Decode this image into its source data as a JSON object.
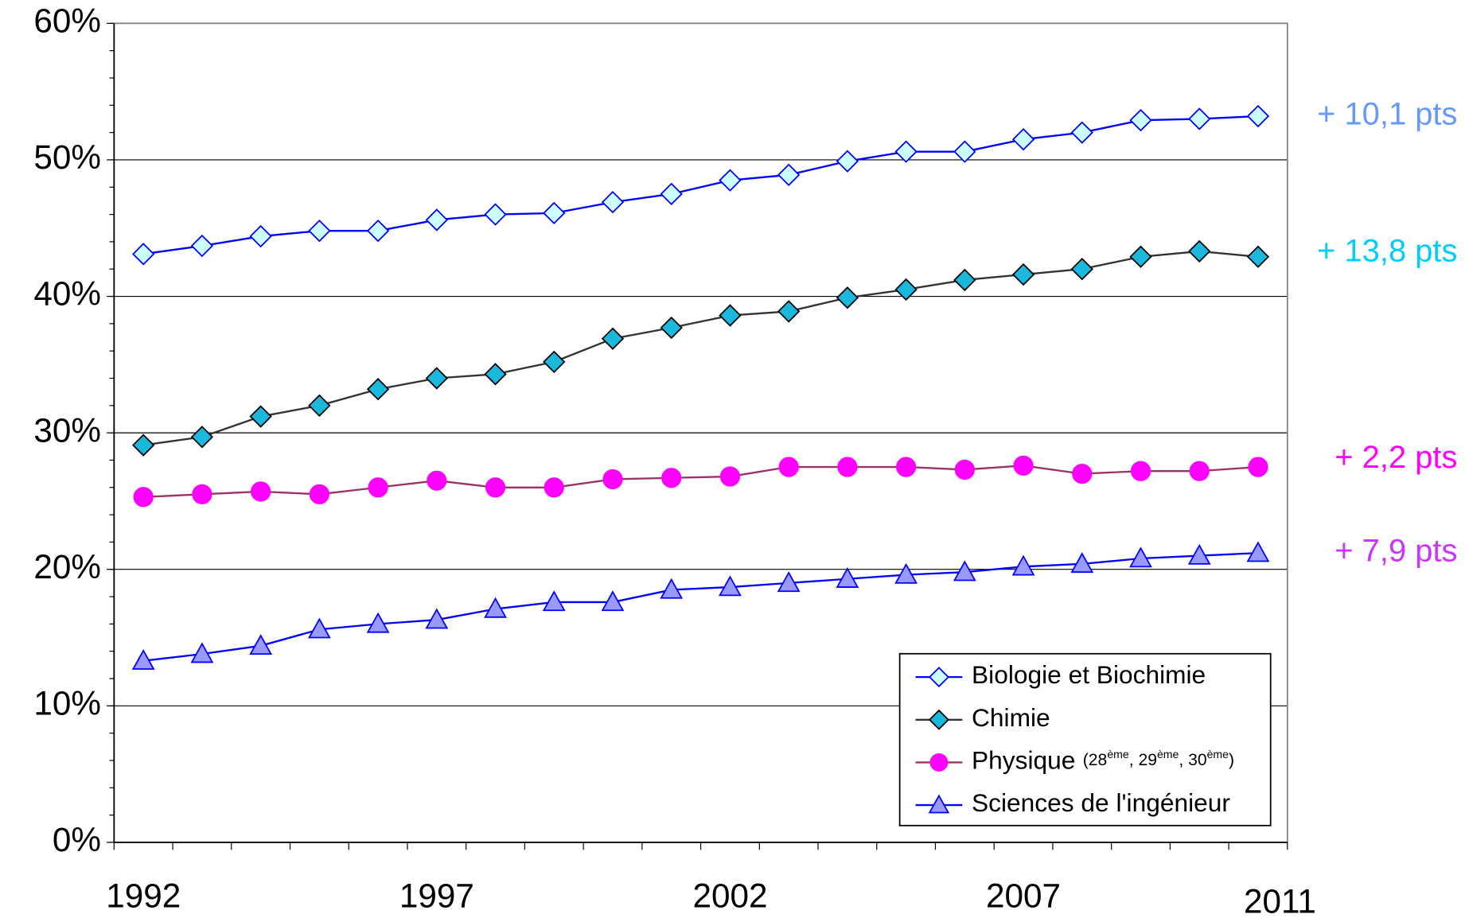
{
  "chart_data": {
    "type": "line",
    "x": [
      1992,
      1993,
      1994,
      1995,
      1996,
      1997,
      1998,
      1999,
      2000,
      2001,
      2002,
      2003,
      2004,
      2005,
      2006,
      2007,
      2008,
      2009,
      2010,
      2011
    ],
    "xlim": [
      1991.5,
      2011.5
    ],
    "xticks": [
      1992,
      1997,
      2002,
      2007,
      2011
    ],
    "ylim": [
      0,
      60
    ],
    "yticks": [
      {
        "value": 0,
        "label": "0%"
      },
      {
        "value": 10,
        "label": "10%"
      },
      {
        "value": 20,
        "label": "20%"
      },
      {
        "value": 30,
        "label": "30%"
      },
      {
        "value": 40,
        "label": "40%"
      },
      {
        "value": 50,
        "label": "50%"
      },
      {
        "value": 60,
        "label": "60%"
      }
    ],
    "grid": true,
    "legend": "lower right",
    "series": [
      {
        "name": "Biologie et Biochimie",
        "color": "#0000ff",
        "marker": "diamond",
        "marker_color": "#ccffff",
        "marker_edge": "#0000ff",
        "values": [
          43.1,
          43.7,
          44.4,
          44.8,
          44.8,
          45.6,
          46.0,
          46.1,
          46.9,
          47.5,
          48.5,
          48.9,
          49.9,
          50.6,
          50.6,
          51.5,
          52.0,
          52.9,
          53.0,
          53.2
        ]
      },
      {
        "name": "Chimie",
        "color": "#333333",
        "marker": "diamond",
        "marker_color": "#1ab8dc",
        "marker_edge": "#000000",
        "values": [
          29.1,
          29.7,
          31.2,
          32.0,
          33.2,
          34.0,
          34.3,
          35.2,
          36.9,
          37.7,
          38.6,
          38.9,
          39.9,
          40.5,
          41.2,
          41.6,
          42.0,
          42.9,
          43.3,
          42.9
        ]
      },
      {
        "name": "Physique",
        "note": [
          "(28",
          "ème",
          ", 29",
          "ème",
          ", 30",
          "ème",
          ")"
        ],
        "color": "#993366",
        "marker": "circle",
        "marker_color": "#ff00ff",
        "marker_edge": "#ff00ff",
        "values": [
          25.3,
          25.5,
          25.7,
          25.5,
          26.0,
          26.5,
          26.0,
          26.0,
          26.6,
          26.7,
          26.8,
          27.5,
          27.5,
          27.5,
          27.3,
          27.6,
          27.0,
          27.2,
          27.2,
          27.5
        ]
      },
      {
        "name": "Sciences de l'ingénieur",
        "color": "#0000ff",
        "marker": "triangle",
        "marker_color": "#9999ff",
        "marker_edge": "#0000ff",
        "values": [
          13.3,
          13.8,
          14.4,
          15.6,
          16.0,
          16.3,
          17.1,
          17.6,
          17.6,
          18.5,
          18.7,
          19.0,
          19.3,
          19.6,
          19.8,
          20.2,
          20.4,
          20.8,
          21.0,
          21.2
        ]
      }
    ],
    "annotations": [
      {
        "text": "+ 10,1 pts",
        "color": "#6699ff"
      },
      {
        "text": "+ 13,8 pts",
        "color": "#00ccff"
      },
      {
        "text": "+ 2,2 pts",
        "color": "#ff00ff"
      },
      {
        "text": "+ 7,9 pts",
        "color": "#cc33ff"
      }
    ]
  }
}
